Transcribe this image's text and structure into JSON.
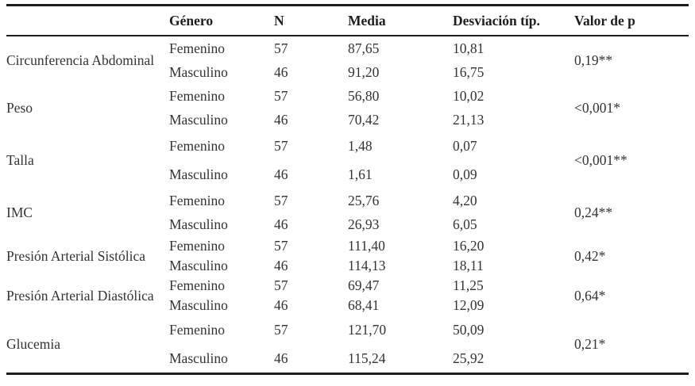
{
  "table": {
    "headers": {
      "variable": "",
      "genero": "Género",
      "n": "N",
      "media": "Media",
      "desv": "Desviación típ.",
      "p": "Valor de p"
    },
    "groups": [
      {
        "variable": "Circunferencia Abdominal",
        "p": "0,19**",
        "rows": [
          {
            "genero": "Femenino",
            "n": "57",
            "media": "87,65",
            "desv": "10,81"
          },
          {
            "genero": "Masculino",
            "n": "46",
            "media": "91,20",
            "desv": "16,75"
          }
        ]
      },
      {
        "variable": "Peso",
        "p": "<0,001*",
        "rows": [
          {
            "genero": "Femenino",
            "n": "57",
            "media": "56,80",
            "desv": "10,02"
          },
          {
            "genero": "Masculino",
            "n": "46",
            "media": "70,42",
            "desv": "21,13"
          }
        ]
      },
      {
        "variable": "Talla",
        "p": "<0,001**",
        "rows": [
          {
            "genero": "Femenino",
            "n": "57",
            "media": "1,48",
            "desv": "0,07"
          },
          {
            "genero": "Masculino",
            "n": "46",
            "media": "1,61",
            "desv": "0,09"
          }
        ]
      },
      {
        "variable": "IMC",
        "p": "0,24**",
        "rows": [
          {
            "genero": "Femenino",
            "n": "57",
            "media": "25,76",
            "desv": "4,20"
          },
          {
            "genero": "Masculino",
            "n": "46",
            "media": "26,93",
            "desv": "6,05"
          }
        ]
      },
      {
        "variable": "Presión Arterial Sistólica",
        "p": "0,42*",
        "rows": [
          {
            "genero": "Femenino",
            "n": "57",
            "media": "111,40",
            "desv": "16,20"
          },
          {
            "genero": "Masculino",
            "n": "46",
            "media": "114,13",
            "desv": "18,11"
          }
        ]
      },
      {
        "variable": "Presión Arterial Diastólica",
        "p": "0,64*",
        "rows": [
          {
            "genero": "Femenino",
            "n": "57",
            "media": "69,47",
            "desv": "11,25"
          },
          {
            "genero": "Masculino",
            "n": "46",
            "media": "68,41",
            "desv": "12,09"
          }
        ]
      },
      {
        "variable": "Glucemia",
        "p": "0,21*",
        "rows": [
          {
            "genero": "Femenino",
            "n": "57",
            "media": "121,70",
            "desv": "50,09"
          },
          {
            "genero": "Masculino",
            "n": "46",
            "media": "115,24",
            "desv": "25,92"
          }
        ]
      }
    ]
  }
}
